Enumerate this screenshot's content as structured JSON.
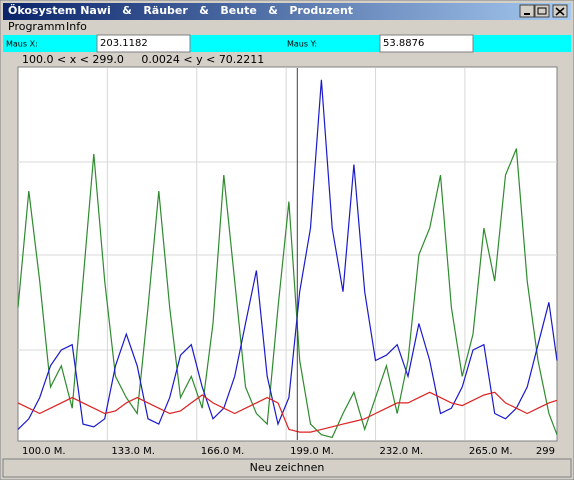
{
  "window": {
    "title": "Ökosystem Nawi   &   Räuber   &   Beute   &   Produzent"
  },
  "menu": [
    "Programm",
    "Info"
  ],
  "mouse": {
    "x_label": "Maus X:",
    "x_value": 203.1182,
    "y_label": "Maus Y:",
    "y_value": 53.8876
  },
  "range_text": "100.0 < x < 299.0     0.0024 < y < 70.2211",
  "button": "Neu zeichnen",
  "chart_data": {
    "type": "line",
    "xlim": [
      100,
      299
    ],
    "ylim": [
      0.0024,
      70.2211
    ],
    "xticks": [
      {
        "value": 100,
        "label": "100.0 M."
      },
      {
        "value": 133,
        "label": "133.0 M."
      },
      {
        "value": 166,
        "label": "166.0 M."
      },
      {
        "value": 199,
        "label": "199.0 M."
      },
      {
        "value": 232,
        "label": "232.0 M."
      },
      {
        "value": 265,
        "label": "265.0 M."
      },
      299
    ],
    "grid": true,
    "x": [
      100,
      104,
      108,
      112,
      116,
      120,
      124,
      128,
      132,
      136,
      140,
      144,
      148,
      152,
      156,
      160,
      164,
      168,
      172,
      176,
      180,
      184,
      188,
      192,
      196,
      200,
      204,
      208,
      212,
      216,
      220,
      224,
      228,
      232,
      236,
      240,
      244,
      248,
      252,
      256,
      260,
      264,
      268,
      272,
      276,
      280,
      284,
      288,
      292,
      296,
      299
    ],
    "series": [
      {
        "color": "#2e8b2e",
        "values": [
          25,
          47,
          30,
          10,
          14,
          6,
          30,
          54,
          30,
          12,
          8,
          5,
          25,
          47,
          25,
          8,
          12,
          6,
          22,
          50,
          30,
          10,
          5,
          3,
          25,
          45,
          15,
          3,
          1,
          0.5,
          5,
          9,
          2,
          8,
          14,
          5,
          15,
          35,
          40,
          50,
          25,
          12,
          20,
          40,
          30,
          50,
          55,
          30,
          15,
          5,
          1
        ]
      },
      {
        "color": "#1a1acc",
        "values": [
          2,
          4,
          8,
          14,
          17,
          18,
          3,
          2.5,
          4,
          14,
          20,
          14,
          4,
          3,
          8,
          16,
          18,
          10,
          4,
          6,
          12,
          22,
          32,
          12,
          3,
          8,
          28,
          40,
          68,
          40,
          28,
          52,
          28,
          15,
          16,
          18,
          12,
          22,
          15,
          5,
          6,
          10,
          17,
          18,
          5,
          4,
          6,
          10,
          18,
          26,
          15
        ]
      },
      {
        "color": "#dd2222",
        "values": [
          7,
          6,
          5,
          6,
          7,
          8,
          7,
          6,
          5,
          5.5,
          7,
          8,
          7,
          6,
          5,
          5.5,
          7,
          8.5,
          7,
          6,
          5,
          6,
          7,
          8,
          7,
          2,
          1.5,
          1.5,
          2,
          2.5,
          3,
          3.5,
          4,
          5,
          6,
          7,
          7,
          8,
          9,
          8,
          7,
          6.5,
          7.5,
          8.5,
          9,
          7,
          6,
          5,
          6,
          7,
          7.5
        ]
      }
    ]
  }
}
